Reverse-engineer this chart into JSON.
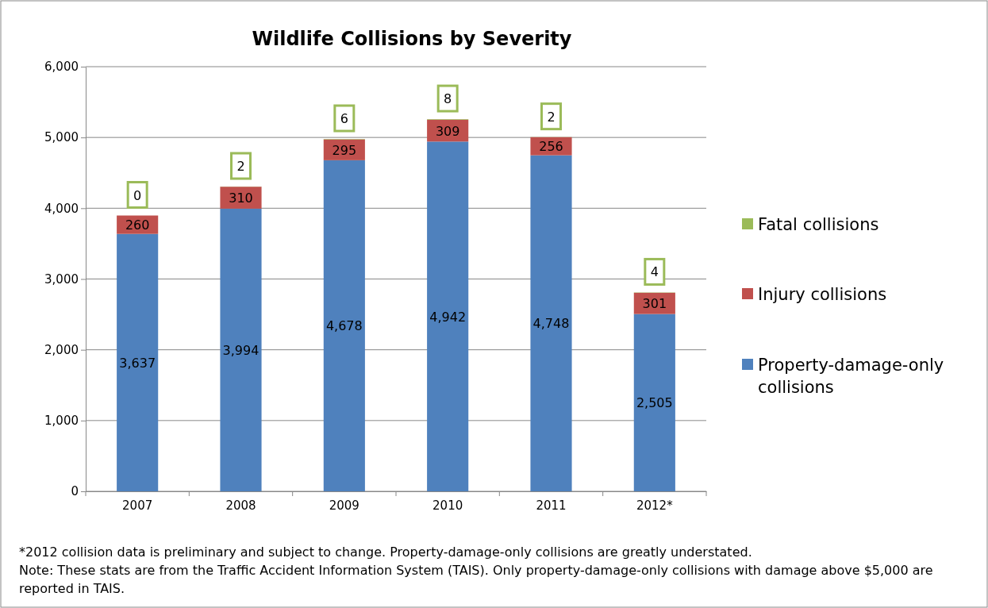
{
  "chart_data": {
    "type": "bar",
    "title": "Wildlife Collisions by Severity",
    "categories": [
      "2007",
      "2008",
      "2009",
      "2010",
      "2011",
      "2012*"
    ],
    "stacked": true,
    "series": [
      {
        "name": "Property-damage-only collisions",
        "color": "#4f81bd",
        "values": [
          3637,
          3994,
          4678,
          4942,
          4748,
          2505
        ],
        "value_labels": [
          "3,637",
          "3,994",
          "4,678",
          "4,942",
          "4,748",
          "2,505"
        ]
      },
      {
        "name": "Injury collisions",
        "color": "#c0504d",
        "values": [
          260,
          310,
          295,
          309,
          256,
          301
        ]
      },
      {
        "name": "Fatal collisions",
        "color": "#9bbb59",
        "values": [
          0,
          2,
          6,
          8,
          2,
          4
        ]
      }
    ],
    "ylim": [
      0,
      6000
    ],
    "yticks": [
      {
        "value": 0,
        "label": "0"
      },
      {
        "value": 1000,
        "label": "1,000"
      },
      {
        "value": 2000,
        "label": "2,000"
      },
      {
        "value": 3000,
        "label": "3,000"
      },
      {
        "value": 4000,
        "label": "4,000"
      },
      {
        "value": 5000,
        "label": "5,000"
      },
      {
        "value": 6000,
        "label": "6,000"
      }
    ],
    "grid": "y",
    "legend": "right",
    "data_labels": true,
    "annotations": [
      "*2012 collision data is preliminary and subject to change. Property-damage-only collisions are greatly understated.",
      "Note: These stats are from the Traffic Accident Information System (TAIS). Only property-damage-only collisions with damage above $5,000 are reported in TAIS."
    ]
  }
}
